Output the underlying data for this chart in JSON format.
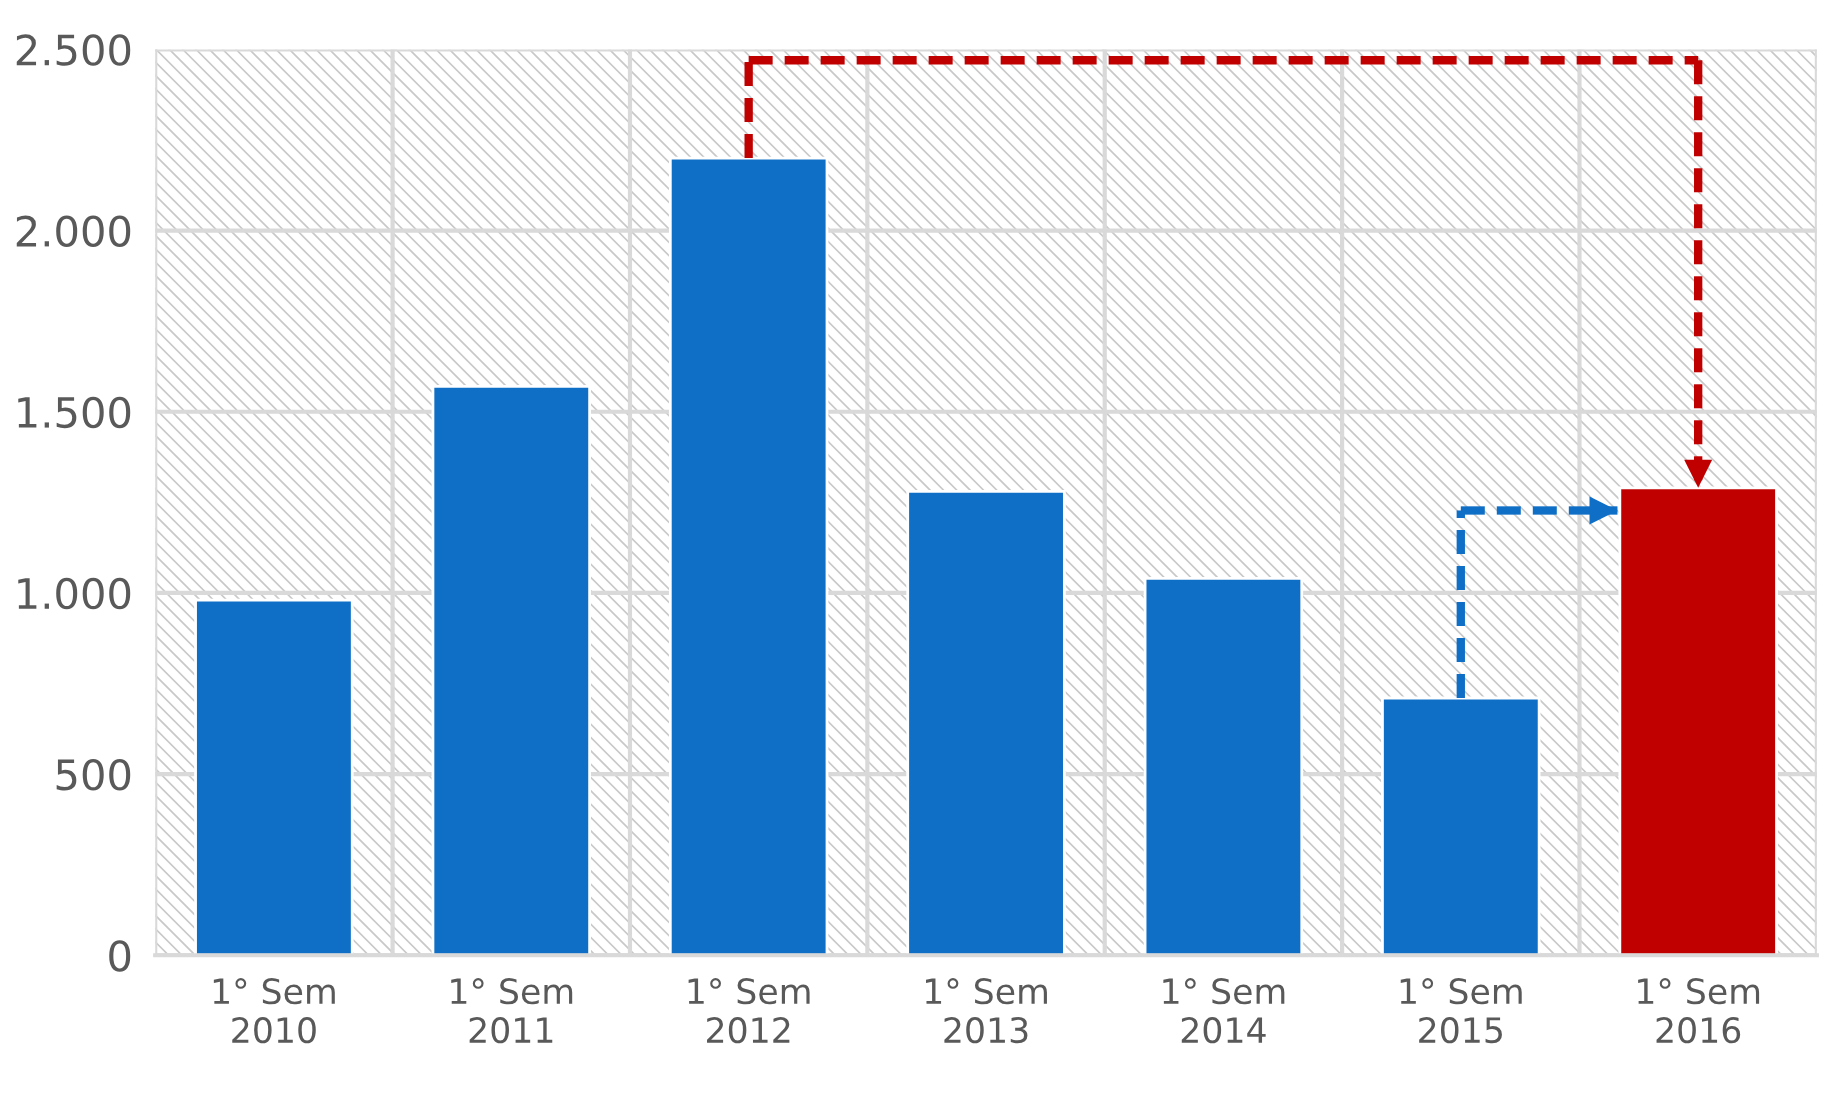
{
  "chart_data": {
    "type": "bar",
    "categories": [
      "1° Sem\n2010",
      "1° Sem\n2011",
      "1° Sem\n2012",
      "1° Sem\n2013",
      "1° Sem\n2014",
      "1° Sem\n2015",
      "1° Sem\n2016"
    ],
    "values": [
      980,
      1570,
      2200,
      1280,
      1040,
      710,
      1290
    ],
    "colors": [
      "#0f6fc6",
      "#0f6fc6",
      "#0f6fc6",
      "#0f6fc6",
      "#0f6fc6",
      "#0f6fc6",
      "#c00000"
    ],
    "ylim": [
      0,
      2500
    ],
    "yticks": [
      {
        "value": 0,
        "label": "0"
      },
      {
        "value": 500,
        "label": "500"
      },
      {
        "value": 1000,
        "label": "1.000"
      },
      {
        "value": 1500,
        "label": "1.500"
      },
      {
        "value": 2000,
        "label": "2.000"
      },
      {
        "value": 2500,
        "label": "2.500"
      }
    ],
    "grid": true
  }
}
